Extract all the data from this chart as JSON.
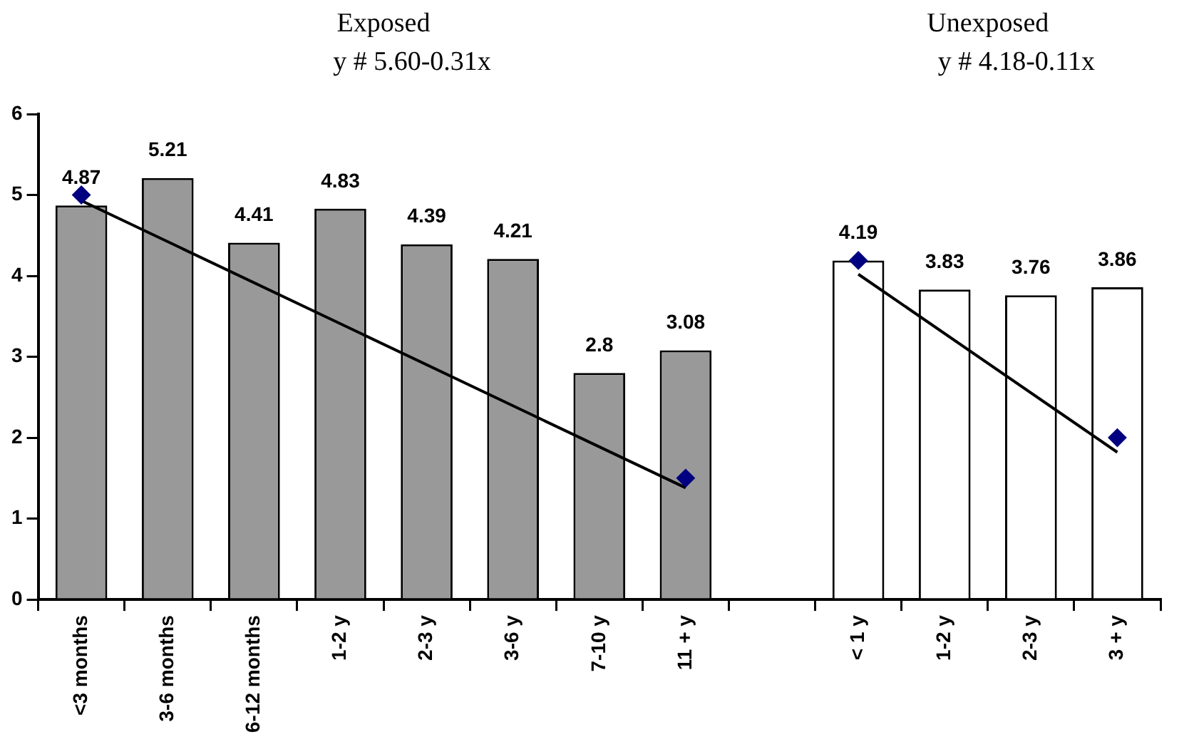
{
  "chart_data": {
    "type": "bar",
    "categories": [
      "<3 months",
      "3-6 months",
      "6-12 months",
      "1-2 y",
      "2-3 y",
      "3-6 y",
      "7-10 y",
      "11 + y",
      null,
      "< 1 y",
      "1-2 y",
      "2-3 y",
      "3 + y"
    ],
    "series": [
      {
        "colors": [
          "#999999",
          "#999999",
          "#999999",
          "#999999",
          "#999999",
          "#999999",
          "#999999",
          "#999999",
          "#999999",
          "#ffffff",
          "#ffffff",
          "#ffffff",
          "#ffffff"
        ],
        "values": [
          4.87,
          5.21,
          4.41,
          4.83,
          4.39,
          4.21,
          2.8,
          3.08,
          null,
          4.19,
          3.83,
          3.76,
          3.86
        ],
        "value_labels": [
          "4.87",
          "5.21",
          "4.41",
          "4.83",
          "4.39",
          "4.21",
          "2.8",
          "3.08",
          null,
          "4.19",
          "3.83",
          "3.76",
          "3.86"
        ]
      },
      {
        "type": "line",
        "color": "#000000",
        "marker": "none",
        "values": [
          4.93,
          null,
          null,
          null,
          null,
          null,
          null,
          1.38,
          null,
          null,
          null,
          null,
          null
        ]
      },
      {
        "type": "line",
        "color": "#000000",
        "marker": "none",
        "values": [
          null,
          null,
          null,
          null,
          null,
          null,
          null,
          null,
          null,
          4.02,
          null,
          null,
          1.82
        ]
      },
      {
        "type": "scatter",
        "color": "#000080",
        "marker": "diamond",
        "values": [
          5.0,
          null,
          null,
          null,
          null,
          null,
          null,
          1.5,
          null,
          4.19,
          null,
          null,
          2.0
        ]
      }
    ],
    "annotations": [
      "Exposed\ny # 5.60-0.31x",
      "Unexposed\ny # 4.18-0.11x"
    ],
    "ylim": [
      0,
      6
    ],
    "yticks": [
      0,
      1,
      2,
      3,
      4,
      5,
      6
    ],
    "grid": false,
    "legend": false
  }
}
